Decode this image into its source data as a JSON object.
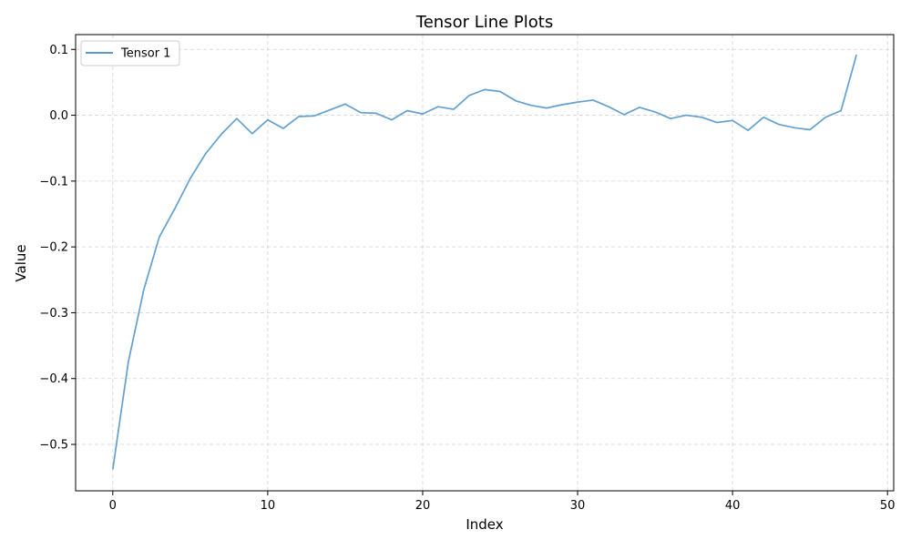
{
  "chart_data": {
    "type": "line",
    "title": "Tensor Line Plots",
    "xlabel": "Index",
    "ylabel": "Value",
    "xlim": [
      -2.4,
      50.4
    ],
    "ylim": [
      -0.5705,
      0.1225
    ],
    "xticks": [
      0,
      10,
      20,
      30,
      40,
      50
    ],
    "xtick_labels": [
      "0",
      "10",
      "20",
      "30",
      "40",
      "50"
    ],
    "yticks": [
      -0.5,
      -0.4,
      -0.3,
      -0.2,
      -0.1,
      0.0,
      0.1
    ],
    "ytick_labels": [
      "−0.5",
      "−0.4",
      "−0.3",
      "−0.2",
      "−0.1",
      "0.0",
      "0.1"
    ],
    "grid": true,
    "legend_position": "upper-left",
    "series": [
      {
        "name": "Tensor 1",
        "color": "#5b9bcc",
        "x": [
          0,
          1,
          2,
          3,
          4,
          5,
          6,
          7,
          8,
          9,
          10,
          11,
          12,
          13,
          14,
          15,
          16,
          17,
          18,
          19,
          20,
          21,
          22,
          23,
          24,
          25,
          26,
          27,
          28,
          29,
          30,
          31,
          32,
          33,
          34,
          35,
          36,
          37,
          38,
          39,
          40,
          41,
          42,
          43,
          44,
          45,
          46,
          47,
          48
        ],
        "values": [
          -0.538,
          -0.375,
          -0.265,
          -0.185,
          -0.142,
          -0.096,
          -0.058,
          -0.029,
          -0.005,
          -0.028,
          -0.007,
          -0.02,
          -0.002,
          -0.001,
          0.008,
          0.017,
          0.004,
          0.003,
          -0.007,
          0.007,
          0.002,
          0.013,
          0.009,
          0.03,
          0.039,
          0.036,
          0.022,
          0.015,
          0.011,
          0.016,
          0.02,
          0.023,
          0.013,
          0.001,
          0.012,
          0.005,
          -0.005,
          0.0,
          -0.003,
          -0.011,
          -0.008,
          -0.023,
          -0.003,
          -0.014,
          -0.019,
          -0.022,
          -0.003,
          0.007,
          0.092
        ]
      }
    ]
  }
}
